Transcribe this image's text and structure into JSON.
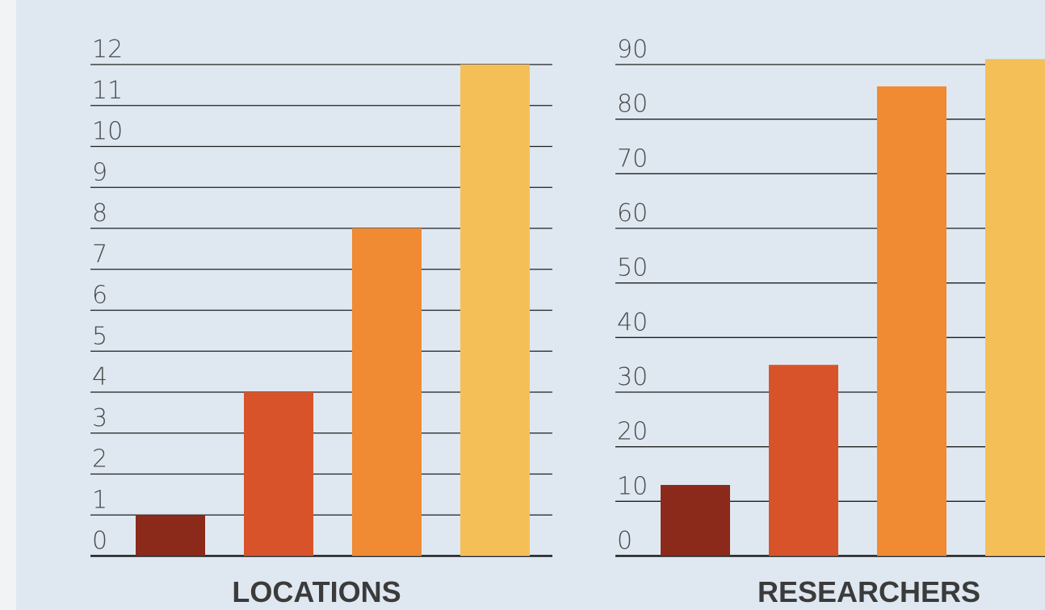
{
  "chart_data": [
    {
      "type": "bar",
      "title": "LOCATIONS",
      "categories": [
        "",
        "",
        "",
        ""
      ],
      "values": [
        1,
        4,
        8,
        12
      ],
      "ylim": [
        0,
        12
      ],
      "yticks": [
        "0",
        "1",
        "2",
        "3",
        "4",
        "5",
        "6",
        "7",
        "8",
        "9",
        "10",
        "11",
        "12"
      ],
      "colors": [
        "#8b2a1a",
        "#d9532a",
        "#f08a33",
        "#f5bf58"
      ],
      "grid": true
    },
    {
      "type": "bar",
      "title": "RESEARCHERS",
      "categories": [
        "",
        "",
        "",
        ""
      ],
      "values": [
        13,
        35,
        86,
        91
      ],
      "ylim": [
        0,
        90
      ],
      "yticks": [
        "0",
        "10",
        "20",
        "30",
        "40",
        "50",
        "60",
        "70",
        "80",
        "90"
      ],
      "colors": [
        "#8b2a1a",
        "#d9532a",
        "#f08a33",
        "#f5bf58"
      ],
      "grid": true
    }
  ]
}
